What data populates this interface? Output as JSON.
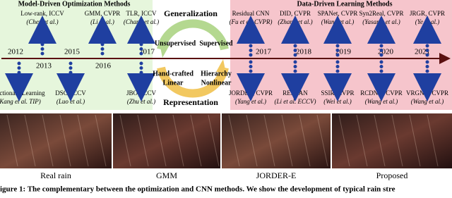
{
  "model_driven": {
    "title": "Model-Driven Optimization Methods",
    "years": [
      "2012",
      "2013",
      "2015",
      "2016",
      "2017"
    ],
    "methods": [
      {
        "name": "Dictionary Learning",
        "ref": "(Kang et al. TIP)"
      },
      {
        "name": "Low-rank, ICCV",
        "ref": "(Chen et al.)"
      },
      {
        "name": "DSC, ICCV",
        "ref": "(Luo et al.)"
      },
      {
        "name": "GMM, CVPR",
        "ref": "(Li et al.)"
      },
      {
        "name": "TLR, ICCV",
        "ref": "(Chang et al.)"
      },
      {
        "name": "JBO, ICCV",
        "ref": "(Zhu et al.)"
      }
    ]
  },
  "center": {
    "top": "Generalization",
    "bottom": "Representation",
    "left_upper": "Unsupervised",
    "right_upper": "Supervised",
    "left_lower": [
      "Hand-crafted",
      "Linear"
    ],
    "right_lower": [
      "Hierarchy",
      "Nonlinear"
    ]
  },
  "data_driven": {
    "title": "Data-Driven Learning Methods",
    "years": [
      "2017",
      "2018",
      "2019",
      "2020",
      "2021"
    ],
    "methods": [
      {
        "name": "Residual CNN",
        "ref": "(Fu et al. CVPR)"
      },
      {
        "name": "DID, CVPR",
        "ref": "(Zhang et al.)"
      },
      {
        "name": "SPANet, CVPR",
        "ref": "(Wang et al.)"
      },
      {
        "name": "Syn2Real, CVPR",
        "ref": "(Yasarla et al.)"
      },
      {
        "name": "JRGR, CVPR",
        "ref": "(Ye et al.)"
      },
      {
        "name": "JORDER, CVPR",
        "ref": "(Yang et al.)"
      },
      {
        "name": "RESCAN",
        "ref": "(Li et al. ECCV)"
      },
      {
        "name": "SSIR, CVPR",
        "ref": "(Wei et al.)"
      },
      {
        "name": "RCDNet, CVPR",
        "ref": "(Wang et al.)"
      },
      {
        "name": "VRGNet, CVPR",
        "ref": "(Wang et al.)"
      }
    ]
  },
  "images": {
    "labels": [
      "Real rain",
      "GMM",
      "JORDER-E",
      "Proposed"
    ]
  },
  "caption": "igure 1: The complementary between the optimization and CNN methods. We show the development of typical rain stre"
}
